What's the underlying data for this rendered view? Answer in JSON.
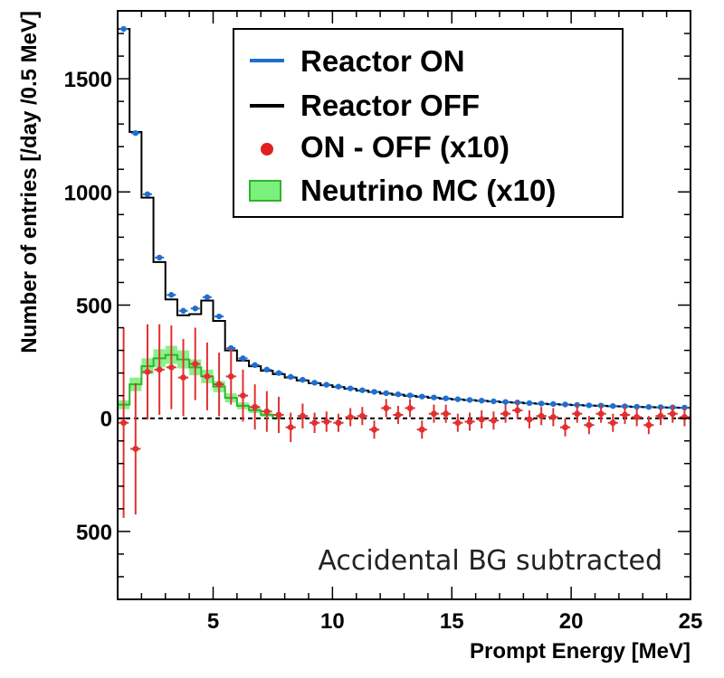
{
  "chart_data": {
    "type": "histogram",
    "xlabel": "Prompt Energy [MeV]",
    "ylabel": "Number of entries [/day /0.5 MeV]",
    "xlim": [
      1,
      25
    ],
    "ylim": [
      -800,
      1800
    ],
    "x_ticks": [
      5,
      10,
      15,
      20,
      25
    ],
    "y_ticks": [
      {
        "value": 1500,
        "label": "1500"
      },
      {
        "value": 1000,
        "label": "1000"
      },
      {
        "value": 500,
        "label": "500"
      },
      {
        "value": 0,
        "label": "0"
      },
      {
        "value": -500,
        "label": "500"
      }
    ],
    "grid": false,
    "legend_position": "top-right",
    "annotation": "Accidental BG subtracted",
    "bin_edges": [
      1,
      1.5,
      2,
      2.5,
      3,
      3.5,
      4,
      4.5,
      5,
      5.5,
      6,
      6.5,
      7,
      7.5,
      8,
      8.5,
      9,
      9.5,
      10,
      10.5,
      11,
      11.5,
      12,
      12.5,
      13,
      13.5,
      14,
      14.5,
      15,
      15.5,
      16,
      16.5,
      17,
      17.5,
      18,
      18.5,
      19,
      19.5,
      20,
      20.5,
      21,
      21.5,
      22,
      22.5,
      23,
      23.5,
      24,
      24.5,
      25
    ],
    "series": [
      {
        "name": "Reactor ON",
        "style": "points",
        "color": "#1f6fd0",
        "values": [
          1720,
          1260,
          990,
          710,
          545,
          475,
          485,
          535,
          450,
          310,
          265,
          235,
          215,
          200,
          183,
          170,
          157,
          148,
          140,
          132,
          124,
          117,
          111,
          106,
          101,
          96,
          92,
          88,
          84,
          81,
          78,
          75,
          72,
          70,
          67,
          65,
          63,
          61,
          59,
          57,
          56,
          54,
          53,
          51,
          50,
          49,
          48,
          47
        ]
      },
      {
        "name": "Reactor OFF",
        "style": "step",
        "color": "#000000",
        "values": [
          1720,
          1265,
          975,
          690,
          525,
          455,
          460,
          520,
          430,
          300,
          255,
          230,
          210,
          195,
          180,
          167,
          155,
          146,
          138,
          130,
          122,
          116,
          109,
          104,
          99,
          95,
          90,
          86,
          83,
          80,
          77,
          74,
          71,
          69,
          66,
          64,
          62,
          60,
          58,
          56,
          55,
          53,
          52,
          50,
          49,
          48,
          47,
          46
        ]
      },
      {
        "name": "ON - OFF (x10)",
        "style": "errorbar",
        "color": "#e03030",
        "values": [
          -20,
          -135,
          205,
          215,
          225,
          180,
          240,
          185,
          150,
          185,
          100,
          50,
          30,
          15,
          -40,
          10,
          -20,
          -15,
          -20,
          5,
          10,
          -50,
          45,
          15,
          45,
          -50,
          20,
          20,
          -20,
          -15,
          -5,
          -10,
          20,
          35,
          -5,
          10,
          5,
          -40,
          20,
          -30,
          20,
          -20,
          15,
          5,
          -30,
          10,
          20,
          5
        ],
        "errors": [
          420,
          290,
          210,
          200,
          185,
          170,
          160,
          150,
          140,
          125,
          115,
          100,
          90,
          80,
          65,
          55,
          45,
          45,
          40,
          40,
          40,
          40,
          40,
          40,
          40,
          40,
          40,
          40,
          40,
          40,
          40,
          40,
          40,
          40,
          40,
          40,
          40,
          40,
          40,
          40,
          40,
          40,
          40,
          40,
          40,
          40,
          40,
          40
        ]
      },
      {
        "name": "Neutrino MC (x10)",
        "style": "band",
        "color": "#44cc44",
        "values": [
          60,
          150,
          230,
          265,
          280,
          260,
          225,
          185,
          140,
          90,
          55,
          35,
          15,
          0
        ],
        "errors": [
          20,
          30,
          35,
          40,
          40,
          40,
          35,
          30,
          25,
          20,
          15,
          12,
          8,
          5
        ]
      }
    ]
  }
}
